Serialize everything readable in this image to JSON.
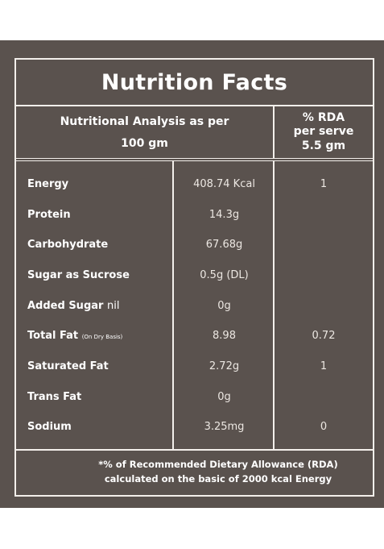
{
  "label": {
    "title": "Nutrition Facts",
    "header": {
      "analysis_line1": "Nutritional Analysis as per",
      "analysis_line2": "100 gm",
      "rda_line1": "% RDA",
      "rda_line2": "per serve",
      "rda_line3": "5.5 gm"
    },
    "rows": [
      {
        "name": "Energy",
        "value": "408.74 Kcal",
        "rda": "1"
      },
      {
        "name": "Protein",
        "value": "14.3g",
        "rda": ""
      },
      {
        "name": "Carbohydrate",
        "value": "67.68g",
        "rda": ""
      },
      {
        "name": "Sugar as Sucrose",
        "value": "0.5g (DL)",
        "rda": ""
      },
      {
        "name": "Added Sugar",
        "name_suffix": "nil",
        "value": "0g",
        "rda": ""
      },
      {
        "name": "Total Fat",
        "name_suffix": "(On Dry Basis)",
        "value": "8.98",
        "rda": "0.72"
      },
      {
        "name": "Saturated Fat",
        "value": "2.72g",
        "rda": "1"
      },
      {
        "name": "Trans Fat",
        "value": "0g",
        "rda": ""
      },
      {
        "name": "Sodium",
        "value": "3.25mg",
        "rda": "0"
      }
    ],
    "footnote_line1": "*% of Recommended Dietary Allowance (RDA)",
    "footnote_line2": "calculated on the basic of 2000 kcal Energy",
    "colors": {
      "background": "#5a524e",
      "lines": "#f3efeb",
      "text": "#ffffff"
    }
  }
}
